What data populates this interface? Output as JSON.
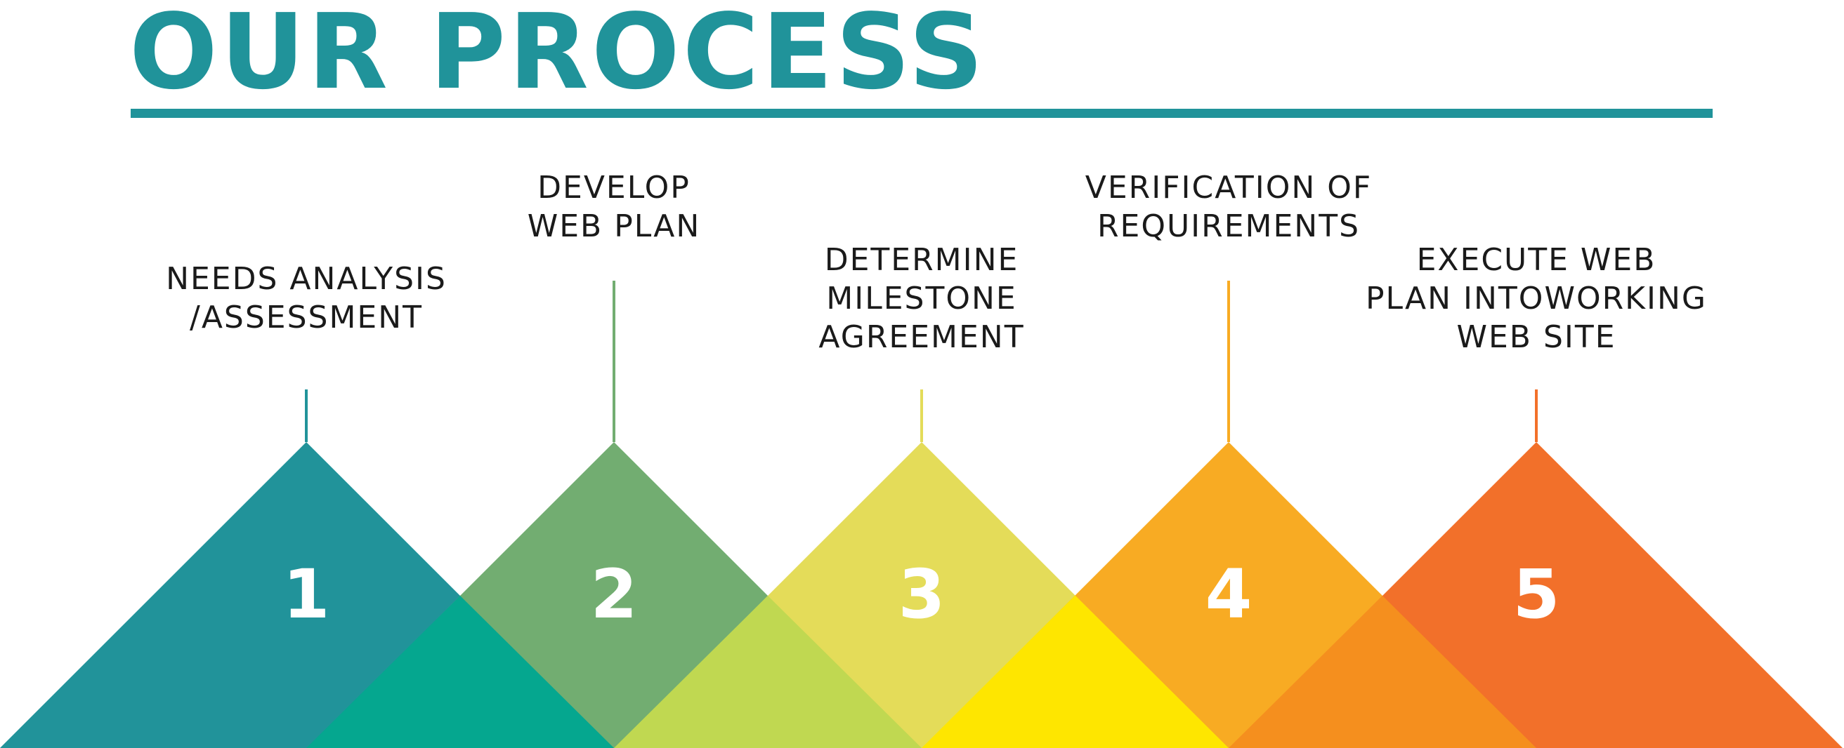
{
  "title": "OUR PROCESS",
  "colors": {
    "title": "#20939a",
    "rule": "#20939a",
    "label_text": "#1a1a1a",
    "number_text": "#ffffff"
  },
  "steps": [
    {
      "number": "1",
      "label_lines": [
        "NEEDS ANALYSIS",
        "/ASSESSMENT"
      ],
      "color": "#21939a"
    },
    {
      "number": "2",
      "label_lines": [
        "DEVELOP",
        "WEB PLAN"
      ],
      "color": "#72ad71"
    },
    {
      "number": "3",
      "label_lines": [
        "DETERMINE",
        "MILESTONE",
        "AGREEMENT"
      ],
      "color": "#e4dc59"
    },
    {
      "number": "4",
      "label_lines": [
        "VERIFICATION OF",
        "REQUIREMENTS"
      ],
      "color": "#f8ab23"
    },
    {
      "number": "5",
      "label_lines": [
        "EXECUTE WEB",
        "PLAN INTOWORKING",
        "WEB SITE"
      ],
      "color": "#f2702a"
    }
  ],
  "overlaps": [
    {
      "color": "#05a78f"
    },
    {
      "color": "#c0d851"
    },
    {
      "color": "#fee600"
    },
    {
      "color": "#f58f1e"
    }
  ]
}
